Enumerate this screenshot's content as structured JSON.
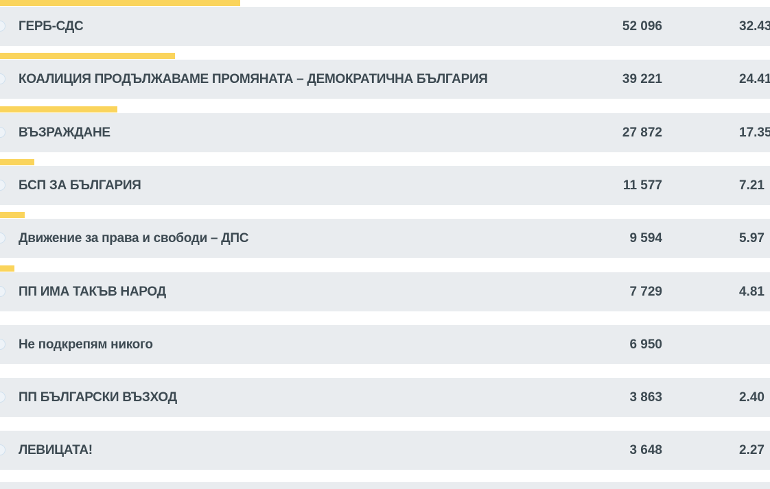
{
  "accent_color": "#fad45c",
  "row_color": "#e9ecef",
  "results": [
    {
      "name": "ГЕРБ-СДС",
      "votes": "52 096",
      "percent": "32.43",
      "bar_percent": 31.2
    },
    {
      "name": "КОАЛИЦИЯ ПРОДЪЛЖАВАМЕ ПРОМЯНАТА – ДЕМОКРАТИЧНА БЪЛГАРИЯ",
      "votes": "39 221",
      "percent": "24.41",
      "bar_percent": 22.7
    },
    {
      "name": "ВЪЗРАЖДАНЕ",
      "votes": "27 872",
      "percent": "17.35",
      "bar_percent": 15.2
    },
    {
      "name": "БСП ЗА БЪЛГАРИЯ",
      "votes": "11 577",
      "percent": "7.21",
      "bar_percent": 4.5
    },
    {
      "name": "Движение за права и свободи – ДПС",
      "votes": "9 594",
      "percent": "5.97",
      "bar_percent": 3.2
    },
    {
      "name": "ПП ИМА ТАКЪВ НАРОД",
      "votes": "7 729",
      "percent": "4.81",
      "bar_percent": 1.9
    },
    {
      "name": "Не подкрепям никого",
      "votes": "6 950",
      "percent": "",
      "bar_percent": 0
    },
    {
      "name": "ПП БЪЛГАРСКИ ВЪЗХОД",
      "votes": "3 863",
      "percent": "2.40",
      "bar_percent": 0
    },
    {
      "name": "ЛЕВИЦАТА!",
      "votes": "3 648",
      "percent": "2.27",
      "bar_percent": 0
    }
  ]
}
